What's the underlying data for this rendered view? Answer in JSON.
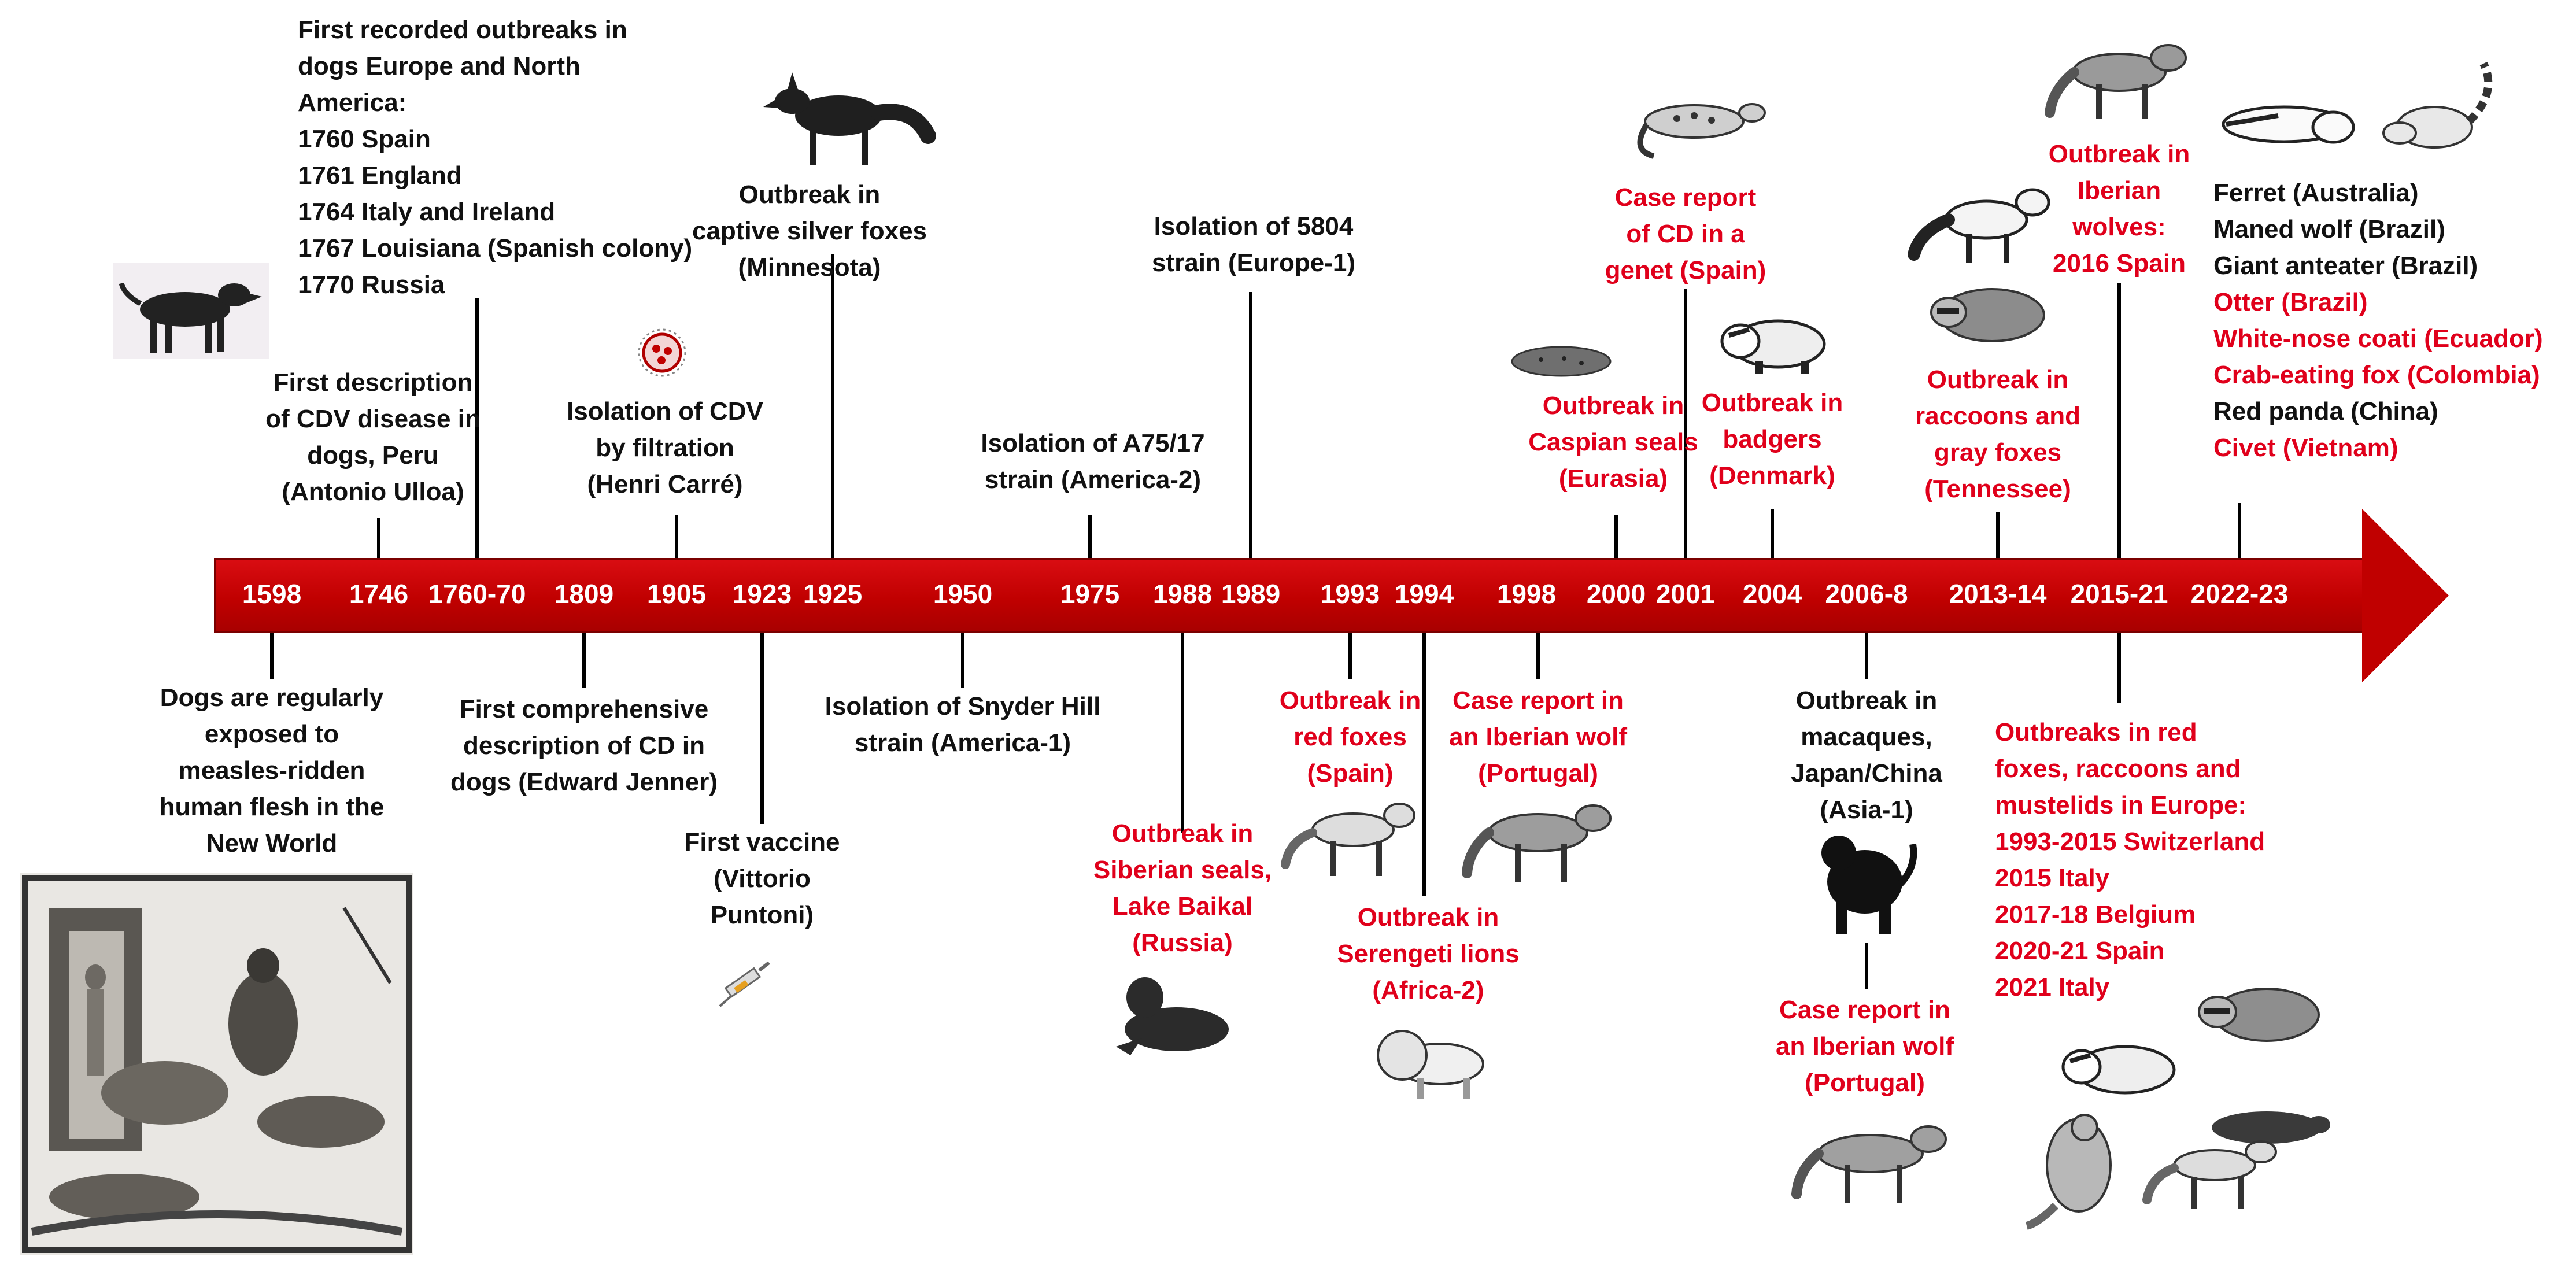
{
  "colors": {
    "timeline_red": "#c00000",
    "event_red": "#e0001b",
    "text_black": "#111111"
  },
  "years": [
    "1598",
    "1746",
    "1760-70",
    "1809",
    "1905",
    "1923",
    "1925",
    "1950",
    "1975",
    "1988",
    "1989",
    "1993",
    "1994",
    "1998",
    "2000",
    "2001",
    "2004",
    "2006-8",
    "2013-14",
    "2015-21",
    "2022-23"
  ],
  "top": {
    "e1746": [
      "First description",
      "of CDV disease in",
      "dogs, Peru",
      "(Antonio Ulloa)"
    ],
    "e1760": [
      "First recorded outbreaks in",
      "dogs  Europe and North",
      "America:",
      "1760 Spain",
      "1761 England",
      "1764 Italy and Ireland",
      "1767 Louisiana (Spanish colony)",
      "1770 Russia"
    ],
    "e1905": [
      "Isolation of CDV",
      "by filtration",
      "(Henri Carré)"
    ],
    "e1925": [
      "Outbreak in",
      "captive silver foxes",
      "(Minnesota)"
    ],
    "e1975": [
      "Isolation of A75/17",
      "strain (America-2)"
    ],
    "e1989": [
      "Isolation of 5804",
      "strain (Europe-1)"
    ],
    "e2000": [
      "Outbreak in",
      "Caspian seals",
      "(Eurasia)"
    ],
    "e2001": [
      "Case report",
      "of CD in a",
      "genet (Spain)"
    ],
    "e2004": [
      "Outbreak in",
      "badgers",
      "(Denmark)"
    ],
    "e2013": [
      "Outbreak in",
      "raccoons and",
      "gray foxes",
      "(Tennessee)"
    ],
    "e2015": [
      "Outbreak in",
      "Iberian",
      "wolves:",
      "2016 Spain"
    ],
    "e2022": [
      {
        "t": "Ferret (Australia)",
        "c": "blk"
      },
      {
        "t": "Maned wolf (Brazil)",
        "c": "blk"
      },
      {
        "t": "Giant anteater (Brazil)",
        "c": "blk"
      },
      {
        "t": "Otter (Brazil)",
        "c": "red"
      },
      {
        "t": "White-nose coati (Ecuador)",
        "c": "red"
      },
      {
        "t": "Crab-eating fox (Colombia)",
        "c": "red"
      },
      {
        "t": "Red panda (China)",
        "c": "blk"
      },
      {
        "t": "Civet (Vietnam)",
        "c": "red"
      }
    ]
  },
  "bottom": {
    "e1598": [
      "Dogs are regularly",
      "exposed to",
      "measles-ridden",
      "human flesh in the",
      "New World"
    ],
    "e1809": [
      "First comprehensive",
      "description of CD in",
      "dogs (Edward Jenner)"
    ],
    "e1923": [
      "First vaccine",
      "(Vittorio",
      "Puntoni)"
    ],
    "e1950": [
      "Isolation of Snyder Hill",
      "strain (America-1)"
    ],
    "e1988": [
      "Outbreak in",
      "Siberian seals,",
      "Lake Baikal",
      "(Russia)"
    ],
    "e1993": [
      "Outbreak in",
      "red foxes",
      "(Spain)"
    ],
    "e1994": [
      "Outbreak in",
      "Serengeti lions",
      "(Africa-2)"
    ],
    "e1998": [
      "Case report in",
      "an Iberian wolf",
      "(Portugal)"
    ],
    "e2006a": [
      "Outbreak in",
      "macaques,",
      "Japan/China",
      "(Asia-1)"
    ],
    "e2006b": [
      "Case report in",
      "an Iberian wolf",
      "(Portugal)"
    ],
    "e2015": [
      "Outbreaks in red",
      "foxes, raccoons and",
      "mustelids in Europe:",
      "1993-2015 Switzerland",
      "2015 Italy",
      "2017-18 Belgium",
      "2020-21 Spain",
      "2021 Italy"
    ]
  }
}
